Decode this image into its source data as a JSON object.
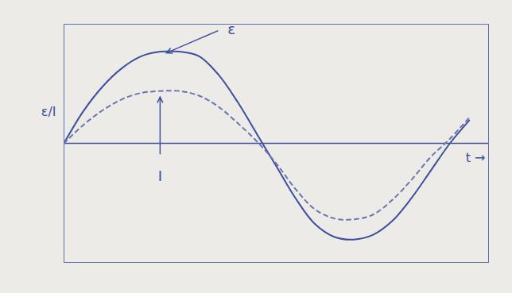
{
  "chart_data": {
    "type": "line",
    "x": [
      0,
      0.5,
      1,
      1.5,
      2,
      2.5,
      3,
      3.5,
      4,
      4.5,
      5,
      5.5,
      6,
      6.5,
      7,
      7.5,
      8,
      8.5,
      9,
      9.5,
      10,
      10.5
    ],
    "series": [
      {
        "name": "ε",
        "color": "#3d4f9e",
        "line_style": "solid",
        "values": [
          0,
          0.35,
          0.62,
          0.82,
          0.95,
          1.0,
          1.0,
          0.95,
          0.75,
          0.45,
          0.1,
          -0.25,
          -0.6,
          -0.88,
          -1.02,
          -1.05,
          -1.0,
          -0.85,
          -0.6,
          -0.3,
          0,
          0.25
        ]
      },
      {
        "name": "I",
        "color": "#6a76b0",
        "line_style": "dashed",
        "values": [
          0,
          0.2,
          0.36,
          0.48,
          0.55,
          0.57,
          0.57,
          0.52,
          0.4,
          0.22,
          0.02,
          -0.22,
          -0.5,
          -0.72,
          -0.82,
          -0.83,
          -0.78,
          -0.62,
          -0.4,
          -0.15,
          0.05,
          0.28
        ]
      }
    ],
    "xlabel": "t →",
    "ylabel": "ε/I",
    "xlim": [
      0,
      11
    ],
    "ylim": [
      -1.3,
      1.3
    ],
    "xticks": [],
    "yticks": [
      0
    ],
    "tick_labels": false,
    "grid": false
  }
}
